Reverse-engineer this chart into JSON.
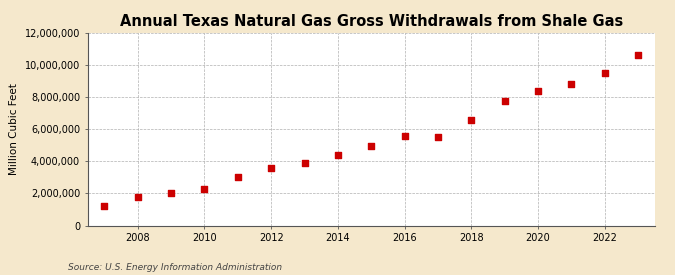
{
  "title": "Annual Texas Natural Gas Gross Withdrawals from Shale Gas",
  "ylabel": "Million Cubic Feet",
  "source": "Source: U.S. Energy Information Administration",
  "background_color": "#f5e8cc",
  "plot_bg_color": "#ffffff",
  "marker_color": "#cc0000",
  "years": [
    2007,
    2008,
    2009,
    2010,
    2011,
    2012,
    2013,
    2014,
    2015,
    2016,
    2017,
    2018,
    2019,
    2020,
    2021,
    2022,
    2023
  ],
  "values": [
    1200000,
    1750000,
    2000000,
    2250000,
    3000000,
    3600000,
    3900000,
    4400000,
    4950000,
    5550000,
    5500000,
    6600000,
    7750000,
    8400000,
    8800000,
    9500000,
    10600000
  ],
  "ylim": [
    0,
    12000000
  ],
  "xlim": [
    2006.5,
    2023.5
  ],
  "yticks": [
    0,
    2000000,
    4000000,
    6000000,
    8000000,
    10000000,
    12000000
  ],
  "xticks": [
    2008,
    2010,
    2012,
    2014,
    2016,
    2018,
    2020,
    2022
  ],
  "title_fontsize": 10.5,
  "ylabel_fontsize": 7.5,
  "tick_fontsize": 7,
  "source_fontsize": 6.5
}
